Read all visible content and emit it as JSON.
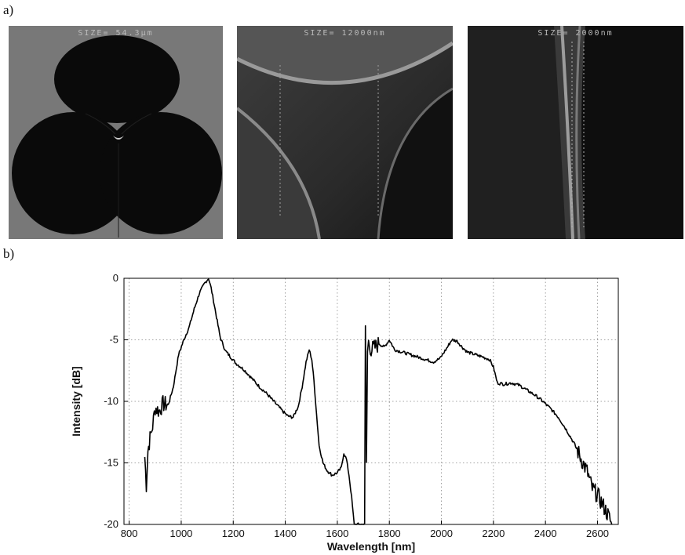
{
  "figure": {
    "label_a": "a)",
    "label_b": "b)",
    "sem_images": [
      {
        "name": "sem-image-cross-section",
        "size_text": "SIZE= 54.3µm"
      },
      {
        "name": "sem-image-core-zoom",
        "size_text": "SIZE= 12000nm"
      },
      {
        "name": "sem-image-bridge-zoom",
        "size_text": "SIZE= 2000nm"
      }
    ]
  },
  "chart_data": {
    "type": "line",
    "title": "",
    "xlabel": "Wavelength [nm]",
    "ylabel": "Intensity [dB]",
    "xlim": [
      780,
      2680
    ],
    "ylim": [
      -20,
      0
    ],
    "xticks": [
      800,
      1000,
      1200,
      1400,
      1600,
      1800,
      2000,
      2200,
      2400,
      2600
    ],
    "yticks": [
      0,
      -5,
      -10,
      -15,
      -20
    ],
    "grid": true,
    "series": [
      {
        "color": "#000000",
        "x": [
          860,
          866,
          872,
          880,
          890,
          900,
          915,
          930,
          950,
          970,
          990,
          1010,
          1030,
          1050,
          1070,
          1090,
          1105,
          1115,
          1130,
          1150,
          1170,
          1190,
          1210,
          1240,
          1270,
          1300,
          1330,
          1360,
          1390,
          1410,
          1430,
          1450,
          1465,
          1480,
          1492,
          1502,
          1510,
          1520,
          1530,
          1545,
          1560,
          1580,
          1600,
          1615,
          1625,
          1635,
          1645,
          1655,
          1665,
          1680,
          1695,
          1705,
          1708,
          1712,
          1716,
          1720,
          1730,
          1745,
          1760,
          1780,
          1800,
          1820,
          1850,
          1880,
          1910,
          1940,
          1970,
          1995,
          2020,
          2040,
          2060,
          2080,
          2100,
          2130,
          2160,
          2185,
          2200,
          2215,
          2240,
          2270,
          2300,
          2330,
          2360,
          2390,
          2420,
          2450,
          2480,
          2510,
          2540,
          2560,
          2580,
          2600,
          2620,
          2640,
          2655
        ],
        "y": [
          -14.5,
          -16.8,
          -14.0,
          -13.0,
          -12.0,
          -10.5,
          -10.8,
          -10.2,
          -10.3,
          -8.8,
          -6.2,
          -5.0,
          -4.0,
          -2.5,
          -1.2,
          -0.4,
          0.0,
          -0.8,
          -2.5,
          -4.8,
          -5.9,
          -6.4,
          -6.9,
          -7.4,
          -8.1,
          -8.8,
          -9.4,
          -10.1,
          -10.8,
          -11.2,
          -11.3,
          -10.4,
          -8.8,
          -6.8,
          -5.8,
          -6.6,
          -8.3,
          -11.0,
          -13.6,
          -15.0,
          -15.6,
          -16.0,
          -15.8,
          -15.4,
          -14.2,
          -14.7,
          -16.0,
          -17.8,
          -20.0,
          -20.0,
          -20.0,
          -20.0,
          -4.2,
          -15.0,
          -6.0,
          -5.2,
          -5.8,
          -5.6,
          -5.3,
          -5.6,
          -5.0,
          -5.8,
          -6.0,
          -6.2,
          -6.4,
          -6.6,
          -6.8,
          -6.5,
          -5.7,
          -5.0,
          -5.1,
          -5.6,
          -6.0,
          -6.2,
          -6.4,
          -6.6,
          -7.2,
          -8.5,
          -8.6,
          -8.5,
          -8.7,
          -9.1,
          -9.5,
          -10.0,
          -10.6,
          -11.3,
          -12.3,
          -13.4,
          -14.8,
          -15.7,
          -17.1,
          -17.6,
          -18.4,
          -19.2,
          -20.0
        ]
      }
    ]
  }
}
